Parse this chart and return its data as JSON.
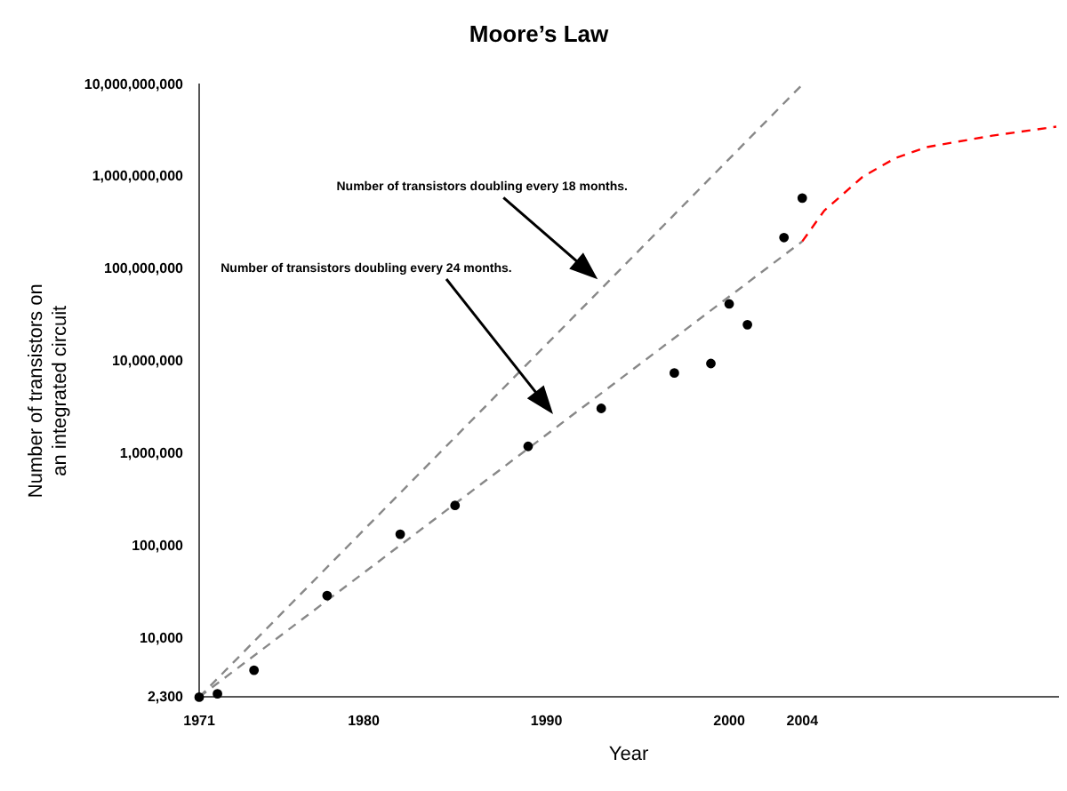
{
  "chart_data": {
    "type": "scatter",
    "title": "Moore’s Law",
    "xlabel": "Year",
    "ylabel": "Number of transistors on\nan integrated circuit",
    "log": "y",
    "grid": false,
    "legend": false,
    "xlim": [
      1971,
      2018
    ],
    "xticks": [
      1971,
      1980,
      1990,
      2000,
      2004
    ],
    "ylim": [
      2300,
      10000000000
    ],
    "yticks": [
      {
        "value": 2300,
        "label": "2,300"
      },
      {
        "value": 10000,
        "label": "10,000"
      },
      {
        "value": 100000,
        "label": "100,000"
      },
      {
        "value": 1000000,
        "label": "1,000,000"
      },
      {
        "value": 10000000,
        "label": "10,000,000"
      },
      {
        "value": 100000000,
        "label": "100,000,000"
      },
      {
        "value": 1000000000,
        "label": "1,000,000,000"
      },
      {
        "value": 10000000000,
        "label": "10,000,000,000"
      }
    ],
    "series": [
      {
        "type": "scatter",
        "color": "#000000",
        "marker": "circle",
        "x": [
          1971,
          1972,
          1974,
          1978,
          1982,
          1985,
          1989,
          1993,
          1997,
          1999,
          2000,
          2001,
          2003,
          2004
        ],
        "values": [
          2300,
          2500,
          4500,
          29000,
          134000,
          275000,
          1200000,
          3100000,
          7500000,
          9500000,
          42000000,
          25000000,
          220000000,
          590000000
        ]
      },
      {
        "type": "line",
        "color": "#888888",
        "line_style": "dashed",
        "marker": "none",
        "x": [
          1971,
          2004
        ],
        "values": [
          2300,
          10000000000
        ]
      },
      {
        "type": "line",
        "color": "#888888",
        "line_style": "dashed",
        "marker": "none",
        "x": [
          1971,
          2004
        ],
        "values": [
          2300,
          200000000
        ]
      },
      {
        "type": "line",
        "color": "#ff0000",
        "line_style": "dashed",
        "marker": "none",
        "x": [
          2004,
          2005.2,
          2007.3,
          2009.1,
          2010.8,
          2014.4,
          2017.9
        ],
        "values": [
          200000000,
          430000000,
          1000000000,
          1600000000,
          2100000000,
          2800000000,
          3500000000
        ]
      }
    ],
    "annotations": [
      "Number of transistors doubling every 18 months.",
      "Number of transistors doubling every 24 months."
    ]
  }
}
